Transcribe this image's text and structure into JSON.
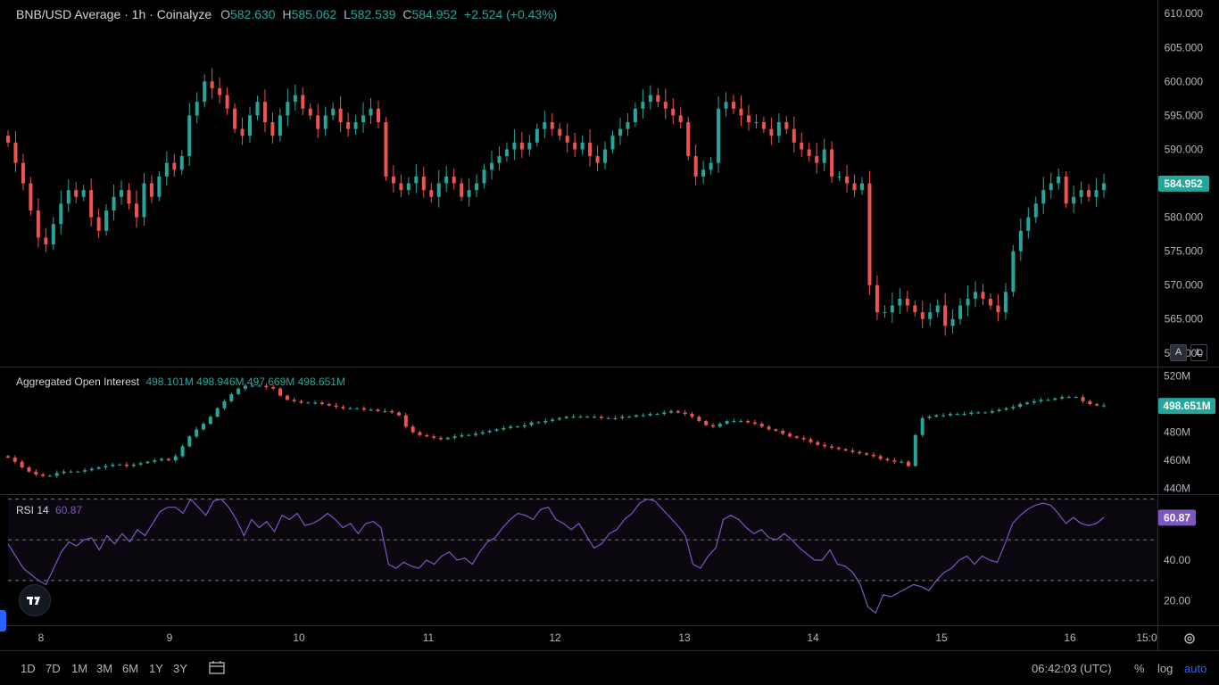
{
  "header": {
    "title": "BNB/USD Average · 1h · Coinalyze",
    "o_label": "O",
    "o": "582.630",
    "h_label": "H",
    "h": "585.062",
    "l_label": "L",
    "l": "582.539",
    "c_label": "C",
    "c": "584.952",
    "change": "+2.524 (+0.43%)"
  },
  "oi_legend": {
    "title": "Aggregated Open Interest",
    "o": "498.101M",
    "h": "498.946M",
    "l": "497.669M",
    "c": "498.651M"
  },
  "rsi_legend": {
    "title": "RSI 14",
    "value": "60.87"
  },
  "toolbar": {
    "timeframes": [
      "1D",
      "7D",
      "1M",
      "3M",
      "6M",
      "1Y",
      "3Y"
    ],
    "clock": "06:42:03 (UTC)",
    "percent": "%",
    "log": "log",
    "auto": "auto",
    "scale_a": "A",
    "scale_l": "L"
  },
  "colors": {
    "up": "#26a69a",
    "down": "#ef5350",
    "rsi": "#7e57c2",
    "background": "#000000",
    "grid": "#1e222d"
  },
  "chart_data": [
    {
      "type": "candlestick",
      "title": "BNB/USD Average · 1h · Coinalyze",
      "ylim": [
        558,
        612
      ],
      "yticks": [
        "610.000",
        "605.000",
        "600.000",
        "595.000",
        "590.000",
        "585.000",
        "580.000",
        "575.000",
        "570.000",
        "565.000",
        "560.000"
      ],
      "last_price": "584.952",
      "xticks": [
        "8",
        "9",
        "10",
        "11",
        "12",
        "13",
        "14",
        "15",
        "16",
        "15:0"
      ],
      "closes": [
        591,
        588,
        585,
        581,
        577,
        576,
        579,
        582,
        584,
        583,
        584,
        580,
        578,
        581,
        583,
        584,
        582,
        580,
        585,
        583,
        586,
        588,
        587,
        589,
        595,
        597,
        600,
        599,
        598,
        596,
        593,
        592,
        595,
        597,
        594,
        592,
        595,
        597,
        598,
        596,
        595,
        593,
        595,
        596,
        594,
        593,
        594,
        595,
        596,
        594,
        586,
        585,
        584,
        585,
        586,
        584,
        583,
        585,
        586,
        585,
        583,
        584,
        585,
        587,
        588,
        589,
        590,
        591,
        590,
        591,
        593,
        594,
        593,
        592,
        591,
        590,
        591,
        589,
        588,
        590,
        592,
        593,
        594,
        596,
        597,
        598,
        597,
        596,
        595,
        594,
        589,
        586,
        587,
        588,
        596,
        597,
        596,
        595,
        594,
        594,
        593,
        592,
        594,
        593,
        591,
        590,
        589,
        588,
        590,
        586,
        586,
        585,
        584,
        585,
        570,
        566,
        566,
        567,
        568,
        567,
        566,
        565,
        566,
        567,
        564,
        565,
        567,
        568,
        569,
        568,
        567,
        566,
        569,
        575,
        578,
        580,
        582,
        584,
        585,
        586,
        582,
        583,
        584,
        583,
        584,
        585
      ],
      "ohlc_last": {
        "o": 582.63,
        "h": 585.062,
        "l": 582.539,
        "c": 584.952
      }
    },
    {
      "type": "candlestick",
      "title": "Aggregated Open Interest",
      "ylim": [
        436,
        526
      ],
      "yticks": [
        "520M",
        "500M",
        "480M",
        "460M",
        "440M"
      ],
      "last_value": "498.651M",
      "closes": [
        462,
        459,
        455,
        452,
        450,
        449,
        449,
        451,
        452,
        452,
        452,
        453,
        454,
        455,
        456,
        457,
        457,
        456,
        457,
        458,
        459,
        460,
        461,
        460,
        463,
        470,
        477,
        482,
        486,
        491,
        497,
        502,
        507,
        511,
        513,
        513,
        513,
        512,
        511,
        506,
        503,
        502,
        501,
        501,
        501,
        500,
        499,
        498,
        497,
        497,
        497,
        496,
        496,
        495,
        495,
        494,
        492,
        484,
        480,
        478,
        477,
        476,
        475,
        476,
        477,
        478,
        478,
        479,
        480,
        481,
        482,
        483,
        484,
        484,
        485,
        487,
        487,
        488,
        489,
        490,
        491,
        491,
        491,
        491,
        491,
        490,
        490,
        490,
        491,
        491,
        492,
        492,
        493,
        493,
        494,
        495,
        494,
        493,
        491,
        488,
        485,
        484,
        486,
        488,
        488,
        488,
        487,
        486,
        484,
        482,
        481,
        479,
        477,
        476,
        475,
        473,
        471,
        470,
        469,
        468,
        467,
        466,
        465,
        464,
        463,
        461,
        460,
        459,
        459,
        456,
        478,
        490,
        491,
        492,
        492,
        493,
        493,
        493,
        494,
        494,
        494,
        495,
        496,
        497,
        498,
        500,
        501,
        502,
        503,
        503,
        504,
        505,
        505,
        505,
        502,
        500,
        499,
        499
      ],
      "ohlc_last": {
        "o": "498.101M",
        "h": "498.946M",
        "l": "497.669M",
        "c": "498.651M"
      }
    },
    {
      "type": "line",
      "title": "RSI 14",
      "ylim": [
        8,
        72
      ],
      "yticks": [
        "40.00",
        "20.00"
      ],
      "bands": [
        30,
        50,
        70
      ],
      "last_value": "60.87",
      "values": [
        48,
        42,
        36,
        33,
        30,
        28,
        36,
        44,
        49,
        47,
        50,
        51,
        45,
        52,
        48,
        53,
        49,
        55,
        52,
        58,
        64,
        66,
        66,
        63,
        70,
        66,
        62,
        69,
        70,
        66,
        60,
        52,
        60,
        56,
        59,
        54,
        62,
        60,
        63,
        57,
        58,
        60,
        63,
        60,
        56,
        58,
        53,
        58,
        59,
        56,
        38,
        36,
        39,
        37,
        36,
        40,
        38,
        42,
        44,
        40,
        41,
        38,
        44,
        49,
        51,
        56,
        60,
        63,
        62,
        60,
        65,
        66,
        60,
        58,
        55,
        58,
        52,
        46,
        48,
        53,
        55,
        60,
        63,
        68,
        70,
        69,
        65,
        61,
        57,
        52,
        38,
        36,
        42,
        46,
        60,
        62,
        60,
        56,
        53,
        55,
        51,
        50,
        53,
        50,
        46,
        43,
        40,
        40,
        45,
        38,
        37,
        34,
        28,
        17,
        14,
        23,
        22,
        24,
        26,
        28,
        27,
        25,
        30,
        34,
        36,
        40,
        42,
        38,
        42,
        40,
        39,
        48,
        58,
        62,
        65,
        67,
        68,
        67,
        63,
        58,
        61,
        58,
        57,
        58,
        61
      ]
    }
  ]
}
